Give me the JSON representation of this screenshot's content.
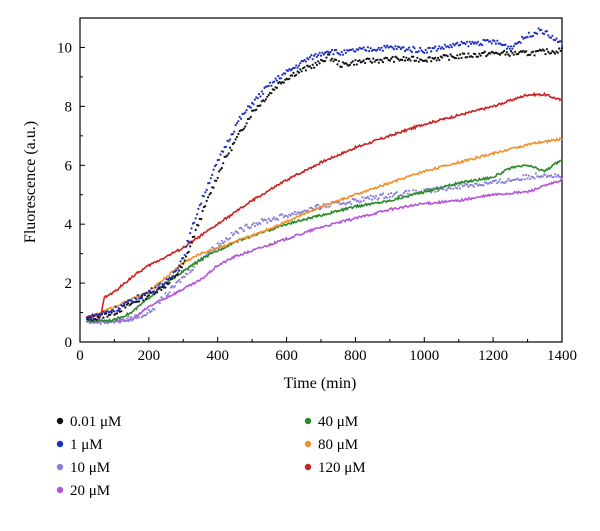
{
  "chart_data": {
    "type": "line",
    "xlabel": "Time (min)",
    "ylabel": "Fluorescence (a.u.)",
    "xlim": [
      0,
      1400
    ],
    "ylim": [
      0,
      11
    ],
    "x_ticks": [
      0,
      200,
      400,
      600,
      800,
      1000,
      1200,
      1400
    ],
    "y_ticks": [
      0,
      2,
      4,
      6,
      8,
      10
    ],
    "grid": false,
    "legend_position": "below",
    "series": [
      {
        "name": "0.01 μM",
        "color": "#111111",
        "style": "dots",
        "x": [
          20,
          100,
          200,
          260,
          300,
          340,
          380,
          420,
          460,
          500,
          540,
          580,
          620,
          660,
          700,
          720,
          760,
          800,
          900,
          1000,
          1100,
          1200,
          1300,
          1400
        ],
        "y": [
          0.75,
          1.0,
          1.6,
          2.0,
          2.6,
          3.9,
          5.1,
          6.2,
          7.0,
          7.8,
          8.3,
          8.8,
          9.1,
          9.3,
          9.5,
          9.7,
          9.4,
          9.5,
          9.6,
          9.6,
          9.7,
          9.8,
          9.8,
          9.9
        ]
      },
      {
        "name": "1 μM",
        "color": "#1c2fbf",
        "style": "dots",
        "x": [
          20,
          100,
          200,
          260,
          300,
          340,
          380,
          420,
          460,
          500,
          540,
          580,
          620,
          660,
          700,
          720,
          760,
          800,
          900,
          1000,
          1100,
          1200,
          1250,
          1300,
          1340,
          1400
        ],
        "y": [
          0.8,
          1.1,
          1.7,
          2.1,
          2.9,
          4.4,
          5.6,
          6.6,
          7.5,
          8.1,
          8.6,
          9.0,
          9.3,
          9.6,
          9.8,
          9.9,
          9.8,
          9.9,
          10.0,
          9.9,
          10.1,
          10.2,
          10.0,
          10.4,
          10.6,
          10.1
        ]
      },
      {
        "name": "10 μM",
        "color": "#8a80d6",
        "style": "dots",
        "x": [
          20,
          100,
          150,
          200,
          250,
          300,
          350,
          400,
          450,
          500,
          600,
          700,
          800,
          900,
          1000,
          1100,
          1200,
          1250,
          1300,
          1350,
          1400
        ],
        "y": [
          0.7,
          0.7,
          0.8,
          1.0,
          1.6,
          2.2,
          2.8,
          3.3,
          3.7,
          4.0,
          4.3,
          4.6,
          4.8,
          5.0,
          5.1,
          5.3,
          5.4,
          5.5,
          5.6,
          5.7,
          5.6
        ]
      },
      {
        "name": "20 μM",
        "color": "#b455d6",
        "style": "line",
        "x": [
          20,
          100,
          150,
          200,
          250,
          300,
          350,
          400,
          450,
          500,
          550,
          600,
          700,
          800,
          900,
          1000,
          1100,
          1200,
          1300,
          1350,
          1400
        ],
        "y": [
          0.7,
          0.7,
          0.75,
          1.2,
          1.5,
          1.8,
          2.1,
          2.6,
          2.9,
          3.1,
          3.3,
          3.5,
          3.9,
          4.2,
          4.5,
          4.7,
          4.8,
          5.0,
          5.1,
          5.3,
          5.5
        ]
      },
      {
        "name": "40 μM",
        "color": "#2a8a2a",
        "style": "line",
        "x": [
          20,
          100,
          150,
          200,
          250,
          300,
          350,
          400,
          450,
          500,
          550,
          600,
          700,
          800,
          900,
          1000,
          1100,
          1200,
          1250,
          1300,
          1350,
          1400
        ],
        "y": [
          0.7,
          0.75,
          1.0,
          1.5,
          2.0,
          2.4,
          2.8,
          3.1,
          3.4,
          3.6,
          3.8,
          4.0,
          4.3,
          4.6,
          4.8,
          5.1,
          5.4,
          5.6,
          5.9,
          6.0,
          5.8,
          6.2
        ]
      },
      {
        "name": "80 μM",
        "color": "#f0902e",
        "style": "line",
        "x": [
          20,
          100,
          200,
          250,
          300,
          350,
          400,
          500,
          600,
          700,
          800,
          900,
          1000,
          1100,
          1200,
          1300,
          1400
        ],
        "y": [
          0.8,
          1.2,
          1.7,
          2.2,
          2.7,
          3.0,
          3.2,
          3.6,
          4.1,
          4.6,
          5.0,
          5.4,
          5.8,
          6.1,
          6.4,
          6.7,
          6.9
        ]
      },
      {
        "name": "120 μM",
        "color": "#cc2222",
        "style": "line",
        "x": [
          20,
          60,
          70,
          100,
          150,
          200,
          300,
          400,
          500,
          600,
          700,
          800,
          900,
          1000,
          1100,
          1200,
          1300,
          1350,
          1400
        ],
        "y": [
          0.85,
          0.9,
          1.5,
          1.7,
          2.2,
          2.6,
          3.2,
          4.0,
          4.8,
          5.5,
          6.1,
          6.6,
          7.0,
          7.4,
          7.7,
          8.0,
          8.4,
          8.4,
          8.2
        ]
      }
    ]
  }
}
